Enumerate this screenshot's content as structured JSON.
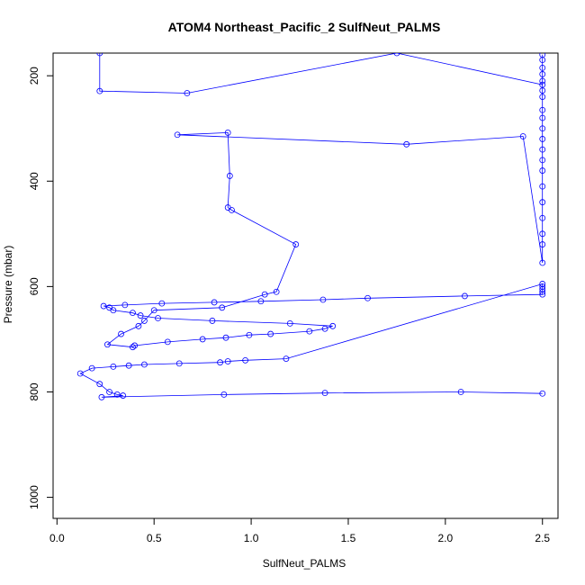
{
  "chart_data": {
    "type": "scatter",
    "title": "ATOM4 Northeast_Pacific_2 SulfNeut_PALMS",
    "xlabel": "SulfNeut_PALMS",
    "ylabel": "Pressure (mbar)",
    "xlim": [
      -0.02,
      2.58
    ],
    "ylim": [
      1040,
      157
    ],
    "y_inverted": true,
    "grid": false,
    "legend": "none",
    "xticks": [
      0.0,
      0.5,
      1.0,
      1.5,
      2.0,
      2.5
    ],
    "xtick_labels": [
      "0.0",
      "0.5",
      "1.0",
      "1.5",
      "2.0",
      "2.5"
    ],
    "yticks": [
      200,
      400,
      600,
      800,
      1000
    ],
    "ytick_labels": [
      "200",
      "400",
      "600",
      "800",
      "1000"
    ],
    "series": [
      {
        "line_color": "#0000ff",
        "marker": "open-circle",
        "x": [
          0.22,
          0.22,
          0.67,
          1.75,
          2.5,
          2.5,
          2.5,
          2.5,
          2.5,
          2.5,
          2.5,
          2.5,
          2.5,
          2.5,
          2.5,
          2.5,
          2.5,
          2.5,
          2.5,
          2.5,
          2.5,
          2.5,
          2.5,
          2.5,
          2.5,
          2.4,
          1.8,
          0.62,
          0.88,
          0.89,
          0.88,
          0.9,
          1.23,
          1.13,
          1.07,
          0.85,
          0.5,
          0.45,
          0.42,
          0.33,
          0.26,
          0.39,
          0.4,
          0.57,
          0.75,
          0.87,
          0.99,
          1.1,
          1.3,
          1.38,
          1.42,
          1.2,
          0.8,
          0.52,
          0.43,
          0.39,
          0.29,
          0.27,
          0.24,
          0.35,
          0.54,
          0.81,
          1.05,
          1.37,
          1.6,
          2.1,
          2.5,
          2.5,
          2.5,
          2.5,
          2.5,
          1.18,
          0.97,
          0.88,
          0.84,
          0.63,
          0.45,
          0.37,
          0.29,
          0.18,
          0.12,
          0.22,
          0.27,
          0.31,
          0.34,
          0.23,
          0.86,
          1.38,
          2.08,
          2.5
        ],
        "y": [
          157,
          229,
          233,
          157,
          217,
          160,
          170,
          185,
          197,
          210,
          228,
          240,
          265,
          280,
          300,
          320,
          340,
          360,
          380,
          410,
          440,
          470,
          500,
          520,
          555,
          315,
          330,
          312,
          308,
          390,
          450,
          455,
          520,
          610,
          615,
          640,
          645,
          665,
          675,
          690,
          710,
          715,
          712,
          705,
          700,
          697,
          692,
          690,
          685,
          680,
          675,
          670,
          665,
          660,
          655,
          650,
          645,
          640,
          637,
          635,
          632,
          630,
          628,
          625,
          622,
          618,
          615,
          610,
          605,
          600,
          595,
          737,
          740,
          742,
          744,
          746,
          748,
          750,
          752,
          755,
          765,
          785,
          800,
          805,
          807,
          810,
          805,
          802,
          800,
          803
        ]
      }
    ]
  }
}
